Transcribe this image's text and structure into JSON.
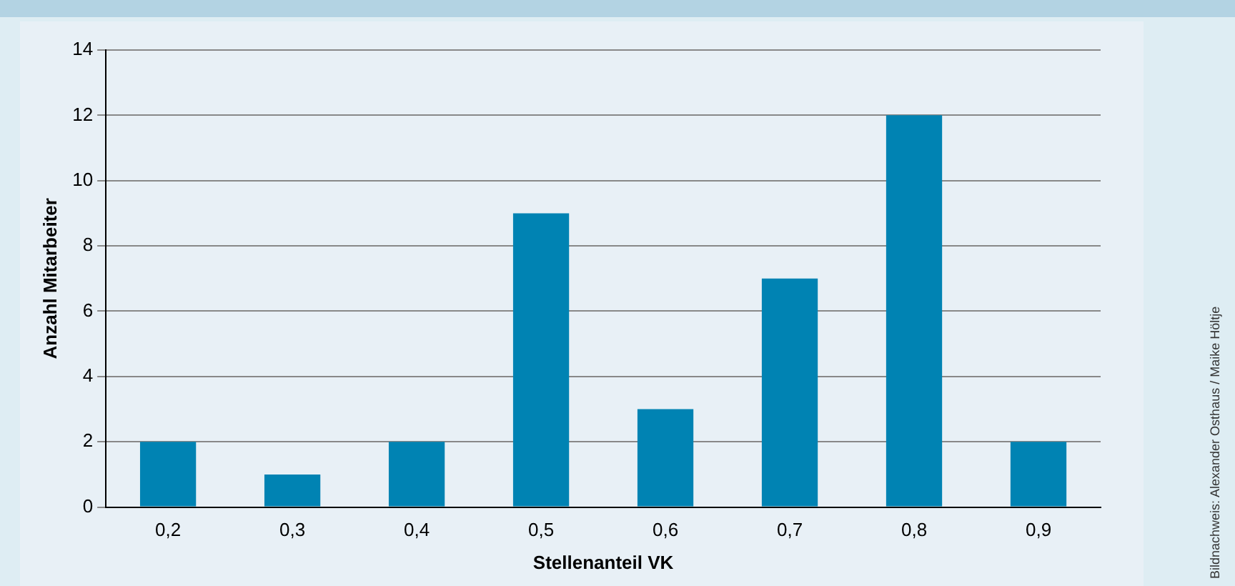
{
  "chart_data": {
    "type": "bar",
    "xlabel": "Stellenanteil VK",
    "ylabel": "Anzahl Mitarbeiter",
    "categories": [
      "0,2",
      "0,3",
      "0,4",
      "0,5",
      "0,6",
      "0,7",
      "0,8",
      "0,9"
    ],
    "values": [
      2,
      1,
      2,
      9,
      3,
      7,
      12,
      2
    ],
    "color": "#0083b3",
    "ylim": [
      0,
      14
    ],
    "yticks": [
      0,
      2,
      4,
      6,
      8,
      10,
      12,
      14
    ],
    "grid": "y",
    "legend": false,
    "annotations": [
      "Bildnachweis: Alexander Osthaus / Maike Höltje"
    ]
  }
}
